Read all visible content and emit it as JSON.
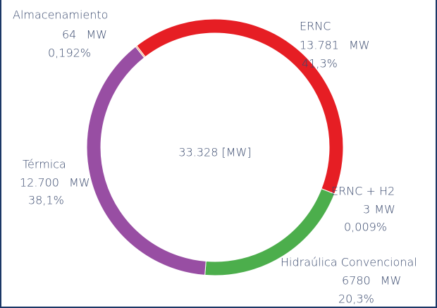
{
  "chart_data": {
    "type": "donut",
    "center_label": "33.328 [MW]",
    "unit": "MW",
    "categories": [
      "Almacenamiento",
      "ERNC",
      "ERNC + H2",
      "Hidraúlica Convencional",
      "Térmica"
    ],
    "values": [
      64,
      13781,
      3,
      6780,
      12700
    ],
    "value_labels": [
      "64",
      "13.781",
      "3",
      "6780",
      "12.700"
    ],
    "percent_labels": [
      "0,192%",
      "41,3%",
      "0,009%",
      "20,3%",
      "38,1%"
    ],
    "colors": [
      "#f0a070",
      "#e61e24",
      "#f2c21b",
      "#4cae4c",
      "#984ea3"
    ]
  }
}
